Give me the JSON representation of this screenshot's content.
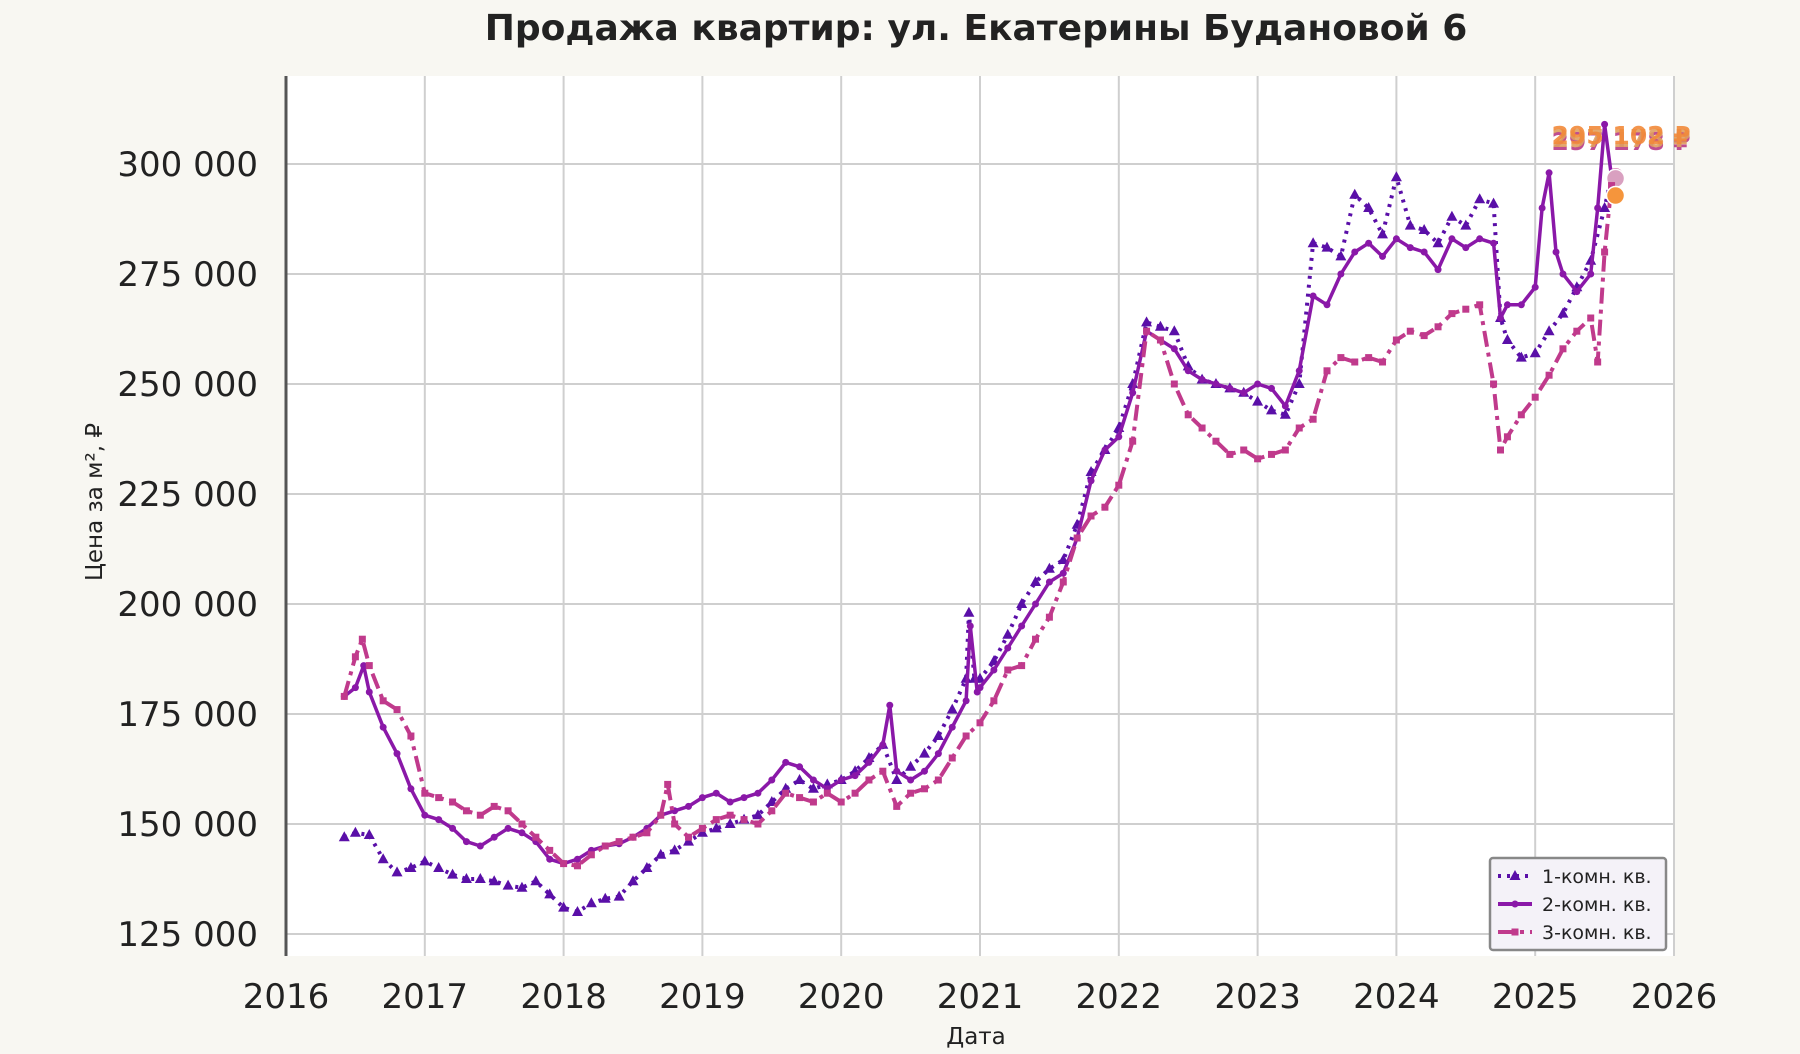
{
  "chart_data": {
    "type": "line",
    "title": "Продажа квартир: ул. Екатерины Будановой 6",
    "xlabel": "Дата",
    "ylabel": "Цена за м², ₽",
    "xlim": [
      2016.0,
      2026.0
    ],
    "ylim": [
      120000,
      320000
    ],
    "x_ticks": [
      "2016",
      "2017",
      "2018",
      "2019",
      "2020",
      "2021",
      "2022",
      "2023",
      "2024",
      "2025",
      "2026"
    ],
    "y_ticks": [
      "125 000",
      "150 000",
      "175 000",
      "200 000",
      "225 000",
      "250 000",
      "275 000",
      "300 000"
    ],
    "grid": true,
    "legend_position": "bottom-right",
    "series": [
      {
        "name": "1-комн. кв.",
        "color": "#5a0fa8",
        "last_label": "297 178 ₽",
        "points": [
          [
            2016.42,
            147000
          ],
          [
            2016.5,
            148000
          ],
          [
            2016.6,
            147500
          ],
          [
            2016.7,
            142000
          ],
          [
            2016.8,
            139000
          ],
          [
            2016.9,
            140000
          ],
          [
            2017.0,
            141500
          ],
          [
            2017.1,
            140000
          ],
          [
            2017.2,
            138500
          ],
          [
            2017.3,
            137500
          ],
          [
            2017.4,
            137500
          ],
          [
            2017.5,
            137000
          ],
          [
            2017.6,
            136000
          ],
          [
            2017.7,
            135500
          ],
          [
            2017.8,
            137000
          ],
          [
            2017.9,
            134000
          ],
          [
            2018.0,
            131000
          ],
          [
            2018.1,
            130000
          ],
          [
            2018.2,
            132000
          ],
          [
            2018.3,
            133000
          ],
          [
            2018.4,
            133500
          ],
          [
            2018.5,
            137000
          ],
          [
            2018.6,
            140000
          ],
          [
            2018.7,
            143000
          ],
          [
            2018.8,
            144000
          ],
          [
            2018.9,
            146000
          ],
          [
            2019.0,
            148000
          ],
          [
            2019.1,
            149000
          ],
          [
            2019.2,
            150000
          ],
          [
            2019.3,
            151000
          ],
          [
            2019.4,
            152000
          ],
          [
            2019.5,
            155000
          ],
          [
            2019.6,
            158000
          ],
          [
            2019.7,
            160000
          ],
          [
            2019.8,
            158000
          ],
          [
            2019.9,
            159000
          ],
          [
            2020.0,
            160000
          ],
          [
            2020.1,
            162000
          ],
          [
            2020.2,
            165000
          ],
          [
            2020.3,
            168000
          ],
          [
            2020.4,
            160000
          ],
          [
            2020.5,
            163000
          ],
          [
            2020.6,
            166000
          ],
          [
            2020.7,
            170000
          ],
          [
            2020.8,
            176000
          ],
          [
            2020.9,
            183000
          ],
          [
            2020.92,
            198000
          ],
          [
            2020.96,
            183000
          ],
          [
            2021.0,
            183000
          ],
          [
            2021.1,
            187000
          ],
          [
            2021.2,
            193000
          ],
          [
            2021.3,
            200000
          ],
          [
            2021.4,
            205000
          ],
          [
            2021.5,
            208000
          ],
          [
            2021.6,
            210000
          ],
          [
            2021.7,
            218000
          ],
          [
            2021.8,
            230000
          ],
          [
            2021.9,
            235000
          ],
          [
            2022.0,
            240000
          ],
          [
            2022.1,
            250000
          ],
          [
            2022.2,
            264000
          ],
          [
            2022.3,
            263000
          ],
          [
            2022.4,
            262000
          ],
          [
            2022.5,
            254000
          ],
          [
            2022.6,
            251000
          ],
          [
            2022.7,
            250000
          ],
          [
            2022.8,
            249000
          ],
          [
            2022.9,
            248000
          ],
          [
            2023.0,
            246000
          ],
          [
            2023.1,
            244000
          ],
          [
            2023.2,
            243000
          ],
          [
            2023.3,
            250000
          ],
          [
            2023.4,
            282000
          ],
          [
            2023.5,
            281000
          ],
          [
            2023.6,
            279000
          ],
          [
            2023.7,
            293000
          ],
          [
            2023.8,
            290000
          ],
          [
            2023.9,
            284000
          ],
          [
            2024.0,
            297000
          ],
          [
            2024.1,
            286000
          ],
          [
            2024.2,
            285000
          ],
          [
            2024.3,
            282000
          ],
          [
            2024.4,
            288000
          ],
          [
            2024.5,
            286000
          ],
          [
            2024.6,
            292000
          ],
          [
            2024.7,
            291000
          ],
          [
            2024.75,
            265000
          ],
          [
            2024.8,
            260000
          ],
          [
            2024.9,
            256000
          ],
          [
            2025.0,
            257000
          ],
          [
            2025.1,
            262000
          ],
          [
            2025.2,
            266000
          ],
          [
            2025.3,
            272000
          ],
          [
            2025.4,
            278000
          ],
          [
            2025.5,
            290000
          ],
          [
            2025.55,
            297178
          ]
        ]
      },
      {
        "name": "2-комн. кв.",
        "color": "#8a18a8",
        "last_label": "297 178 ₽",
        "points": [
          [
            2016.42,
            179000
          ],
          [
            2016.5,
            181000
          ],
          [
            2016.56,
            186000
          ],
          [
            2016.6,
            180000
          ],
          [
            2016.7,
            172000
          ],
          [
            2016.8,
            166000
          ],
          [
            2016.9,
            158000
          ],
          [
            2017.0,
            152000
          ],
          [
            2017.1,
            151000
          ],
          [
            2017.2,
            149000
          ],
          [
            2017.3,
            146000
          ],
          [
            2017.4,
            145000
          ],
          [
            2017.5,
            147000
          ],
          [
            2017.6,
            149000
          ],
          [
            2017.7,
            148000
          ],
          [
            2017.8,
            146000
          ],
          [
            2017.9,
            142000
          ],
          [
            2018.0,
            141000
          ],
          [
            2018.1,
            142000
          ],
          [
            2018.2,
            144000
          ],
          [
            2018.3,
            145000
          ],
          [
            2018.4,
            145500
          ],
          [
            2018.5,
            147000
          ],
          [
            2018.6,
            149000
          ],
          [
            2018.7,
            152000
          ],
          [
            2018.8,
            153000
          ],
          [
            2018.9,
            154000
          ],
          [
            2019.0,
            156000
          ],
          [
            2019.1,
            157000
          ],
          [
            2019.2,
            155000
          ],
          [
            2019.3,
            156000
          ],
          [
            2019.4,
            157000
          ],
          [
            2019.5,
            160000
          ],
          [
            2019.6,
            164000
          ],
          [
            2019.7,
            163000
          ],
          [
            2019.8,
            160000
          ],
          [
            2019.9,
            158000
          ],
          [
            2020.0,
            160000
          ],
          [
            2020.1,
            161000
          ],
          [
            2020.2,
            164000
          ],
          [
            2020.3,
            168000
          ],
          [
            2020.35,
            177000
          ],
          [
            2020.4,
            162000
          ],
          [
            2020.5,
            160000
          ],
          [
            2020.6,
            162000
          ],
          [
            2020.7,
            166000
          ],
          [
            2020.8,
            172000
          ],
          [
            2020.9,
            178000
          ],
          [
            2020.93,
            195000
          ],
          [
            2020.98,
            180000
          ],
          [
            2021.0,
            181000
          ],
          [
            2021.1,
            185000
          ],
          [
            2021.2,
            190000
          ],
          [
            2021.3,
            195000
          ],
          [
            2021.4,
            200000
          ],
          [
            2021.5,
            205000
          ],
          [
            2021.6,
            207000
          ],
          [
            2021.7,
            215000
          ],
          [
            2021.8,
            228000
          ],
          [
            2021.9,
            235000
          ],
          [
            2022.0,
            238000
          ],
          [
            2022.1,
            248000
          ],
          [
            2022.2,
            262000
          ],
          [
            2022.3,
            260000
          ],
          [
            2022.4,
            258000
          ],
          [
            2022.5,
            253000
          ],
          [
            2022.6,
            251000
          ],
          [
            2022.7,
            250000
          ],
          [
            2022.8,
            249000
          ],
          [
            2022.9,
            248000
          ],
          [
            2023.0,
            250000
          ],
          [
            2023.1,
            249000
          ],
          [
            2023.2,
            245000
          ],
          [
            2023.3,
            253000
          ],
          [
            2023.4,
            270000
          ],
          [
            2023.5,
            268000
          ],
          [
            2023.6,
            275000
          ],
          [
            2023.7,
            280000
          ],
          [
            2023.8,
            282000
          ],
          [
            2023.9,
            279000
          ],
          [
            2024.0,
            283000
          ],
          [
            2024.1,
            281000
          ],
          [
            2024.2,
            280000
          ],
          [
            2024.3,
            276000
          ],
          [
            2024.4,
            283000
          ],
          [
            2024.5,
            281000
          ],
          [
            2024.6,
            283000
          ],
          [
            2024.7,
            282000
          ],
          [
            2024.75,
            265000
          ],
          [
            2024.8,
            268000
          ],
          [
            2024.9,
            268000
          ],
          [
            2025.0,
            272000
          ],
          [
            2025.05,
            290000
          ],
          [
            2025.1,
            298000
          ],
          [
            2025.15,
            280000
          ],
          [
            2025.2,
            275000
          ],
          [
            2025.3,
            271000
          ],
          [
            2025.4,
            275000
          ],
          [
            2025.45,
            290000
          ],
          [
            2025.5,
            309000
          ],
          [
            2025.55,
            297178
          ]
        ]
      },
      {
        "name": "3-комн. кв.",
        "color": "#c03a8c",
        "last_label": "295 102 ₽",
        "points": [
          [
            2016.42,
            179000
          ],
          [
            2016.5,
            188000
          ],
          [
            2016.55,
            192000
          ],
          [
            2016.6,
            186000
          ],
          [
            2016.7,
            178000
          ],
          [
            2016.8,
            176000
          ],
          [
            2016.9,
            170000
          ],
          [
            2017.0,
            157000
          ],
          [
            2017.1,
            156000
          ],
          [
            2017.2,
            155000
          ],
          [
            2017.3,
            153000
          ],
          [
            2017.4,
            152000
          ],
          [
            2017.5,
            154000
          ],
          [
            2017.6,
            153000
          ],
          [
            2017.7,
            150000
          ],
          [
            2017.8,
            147000
          ],
          [
            2017.9,
            144000
          ],
          [
            2018.0,
            141000
          ],
          [
            2018.1,
            140500
          ],
          [
            2018.2,
            143000
          ],
          [
            2018.3,
            145000
          ],
          [
            2018.4,
            146000
          ],
          [
            2018.5,
            147000
          ],
          [
            2018.6,
            148000
          ],
          [
            2018.7,
            152000
          ],
          [
            2018.75,
            159000
          ],
          [
            2018.8,
            150000
          ],
          [
            2018.9,
            147000
          ],
          [
            2019.0,
            149000
          ],
          [
            2019.1,
            151000
          ],
          [
            2019.2,
            152000
          ],
          [
            2019.3,
            151000
          ],
          [
            2019.4,
            150000
          ],
          [
            2019.5,
            153000
          ],
          [
            2019.6,
            157000
          ],
          [
            2019.7,
            156000
          ],
          [
            2019.8,
            155000
          ],
          [
            2019.9,
            157000
          ],
          [
            2020.0,
            155000
          ],
          [
            2020.1,
            157000
          ],
          [
            2020.2,
            160000
          ],
          [
            2020.3,
            162000
          ],
          [
            2020.4,
            154000
          ],
          [
            2020.5,
            157000
          ],
          [
            2020.6,
            158000
          ],
          [
            2020.7,
            160000
          ],
          [
            2020.8,
            165000
          ],
          [
            2020.9,
            170000
          ],
          [
            2021.0,
            173000
          ],
          [
            2021.1,
            178000
          ],
          [
            2021.2,
            185000
          ],
          [
            2021.3,
            186000
          ],
          [
            2021.4,
            192000
          ],
          [
            2021.5,
            197000
          ],
          [
            2021.6,
            205000
          ],
          [
            2021.7,
            215000
          ],
          [
            2021.8,
            220000
          ],
          [
            2021.9,
            222000
          ],
          [
            2022.0,
            227000
          ],
          [
            2022.1,
            237000
          ],
          [
            2022.2,
            262000
          ],
          [
            2022.3,
            260000
          ],
          [
            2022.4,
            250000
          ],
          [
            2022.5,
            243000
          ],
          [
            2022.6,
            240000
          ],
          [
            2022.7,
            237000
          ],
          [
            2022.8,
            234000
          ],
          [
            2022.9,
            235000
          ],
          [
            2023.0,
            233000
          ],
          [
            2023.1,
            234000
          ],
          [
            2023.2,
            235000
          ],
          [
            2023.3,
            240000
          ],
          [
            2023.4,
            242000
          ],
          [
            2023.5,
            253000
          ],
          [
            2023.6,
            256000
          ],
          [
            2023.7,
            255000
          ],
          [
            2023.8,
            256000
          ],
          [
            2023.9,
            255000
          ],
          [
            2024.0,
            260000
          ],
          [
            2024.1,
            262000
          ],
          [
            2024.2,
            261000
          ],
          [
            2024.3,
            263000
          ],
          [
            2024.4,
            266000
          ],
          [
            2024.5,
            267000
          ],
          [
            2024.6,
            268000
          ],
          [
            2024.7,
            250000
          ],
          [
            2024.75,
            235000
          ],
          [
            2024.8,
            238000
          ],
          [
            2024.9,
            243000
          ],
          [
            2025.0,
            247000
          ],
          [
            2025.1,
            252000
          ],
          [
            2025.2,
            258000
          ],
          [
            2025.3,
            262000
          ],
          [
            2025.4,
            265000
          ],
          [
            2025.45,
            255000
          ],
          [
            2025.5,
            280000
          ],
          [
            2025.55,
            295102
          ]
        ]
      }
    ]
  }
}
